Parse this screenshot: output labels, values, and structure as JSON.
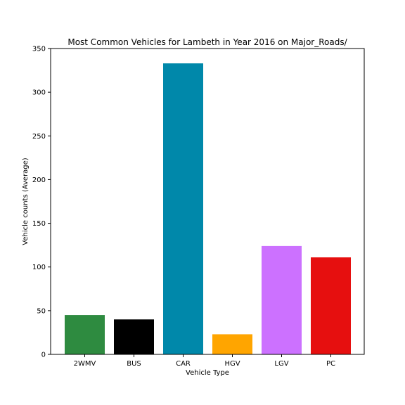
{
  "chart_data": {
    "type": "bar",
    "title": "Most Common Vehicles for Lambeth in Year 2016 on Major_Roads/",
    "xlabel": "Vehicle Type",
    "ylabel": "Vehicle counts (Average)",
    "categories": [
      "2WMV",
      "BUS",
      "CAR",
      "HGV",
      "LGV",
      "PC"
    ],
    "values": [
      45,
      40,
      333,
      23,
      124,
      111
    ],
    "colors": [
      "#2e8b40",
      "#000000",
      "#0088aa",
      "#ffa500",
      "#cc71ff",
      "#e60f0f"
    ],
    "ylim": [
      0,
      350
    ],
    "yticks": [
      0,
      50,
      100,
      150,
      200,
      250,
      300,
      350
    ],
    "grid": false,
    "legend": "none"
  }
}
